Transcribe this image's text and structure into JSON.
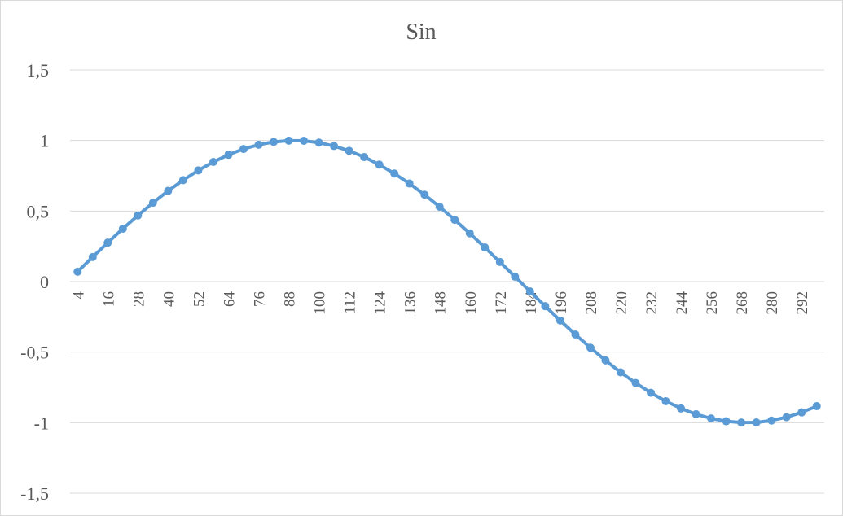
{
  "chart_data": {
    "type": "line",
    "title": "Sin",
    "xlabel": "",
    "ylabel": "",
    "ylim": [
      -1.5,
      1.5
    ],
    "y_ticks": [
      "1,5",
      "1",
      "0,5",
      "0",
      "-0,5",
      "-1",
      "-1,5"
    ],
    "y_tick_values": [
      1.5,
      1,
      0.5,
      0,
      -0.5,
      -1,
      -1.5
    ],
    "x_tick_labels": [
      "4",
      "16",
      "28",
      "40",
      "52",
      "64",
      "76",
      "88",
      "100",
      "112",
      "124",
      "136",
      "148",
      "160",
      "172",
      "184",
      "196",
      "208",
      "220",
      "232",
      "244",
      "256",
      "268",
      "280",
      "292"
    ],
    "grid": "horizontal",
    "legend": "none",
    "colors": {
      "series": "#5b9bd5",
      "grid": "#d9d9d9",
      "text": "#595959"
    },
    "series": [
      {
        "x": [
          4,
          10,
          16,
          22,
          28,
          34,
          40,
          46,
          52,
          58,
          64,
          70,
          76,
          82,
          88,
          94,
          100,
          106,
          112,
          118,
          124,
          130,
          136,
          142,
          148,
          154,
          160,
          166,
          172,
          178,
          184,
          190,
          196,
          202,
          208,
          214,
          220,
          226,
          232,
          238,
          244,
          250,
          256,
          262,
          268,
          274,
          280,
          286,
          292,
          298
        ],
        "values": [
          0.07,
          0.174,
          0.276,
          0.375,
          0.469,
          0.559,
          0.643,
          0.719,
          0.788,
          0.848,
          0.899,
          0.94,
          0.97,
          0.99,
          0.999,
          0.998,
          0.985,
          0.961,
          0.927,
          0.883,
          0.829,
          0.766,
          0.695,
          0.616,
          0.53,
          0.438,
          0.342,
          0.242,
          0.139,
          0.035,
          -0.07,
          -0.174,
          -0.276,
          -0.375,
          -0.469,
          -0.559,
          -0.643,
          -0.719,
          -0.788,
          -0.848,
          -0.899,
          -0.94,
          -0.97,
          -0.99,
          -0.999,
          -0.998,
          -0.985,
          -0.961,
          -0.927,
          -0.883
        ]
      }
    ]
  }
}
